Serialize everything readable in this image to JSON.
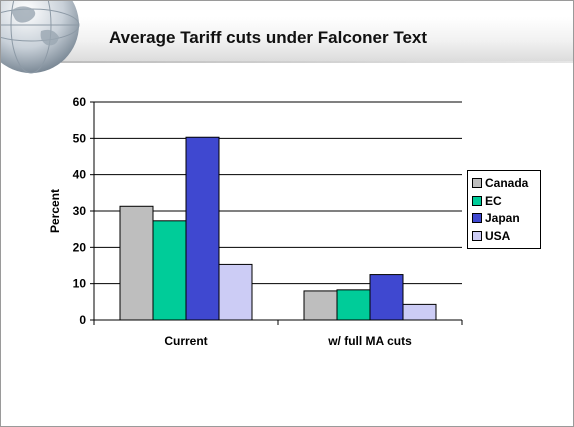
{
  "slide": {
    "title": "Average Tariff cuts under Falconer Text"
  },
  "chart_data": {
    "type": "bar",
    "title": "",
    "xlabel": "",
    "ylabel": "Percent",
    "ylim": [
      0,
      60
    ],
    "yticks": [
      0,
      10,
      20,
      30,
      40,
      50,
      60
    ],
    "grid": true,
    "legend_position": "right",
    "categories": [
      "Current",
      "w/ full MA cuts"
    ],
    "series": [
      {
        "name": "Canada",
        "color": "#bebebe",
        "values": [
          31.3,
          8.0
        ]
      },
      {
        "name": "EC",
        "color": "#00cc99",
        "values": [
          27.3,
          8.3
        ]
      },
      {
        "name": "Japan",
        "color": "#3f48d0",
        "values": [
          50.3,
          12.5
        ]
      },
      {
        "name": "USA",
        "color": "#ccccf5",
        "values": [
          15.3,
          4.3
        ]
      }
    ]
  }
}
